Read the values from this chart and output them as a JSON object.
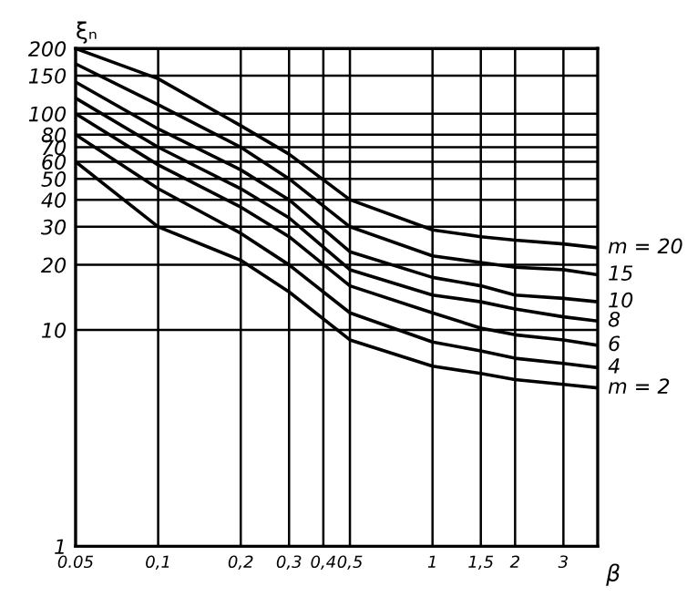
{
  "chart_data": {
    "type": "line",
    "xlabel": "β",
    "ylabel": "ξₙ",
    "log": "xy",
    "grid": true,
    "legend": false,
    "marker": "none",
    "line_style": "solid",
    "x": [
      0.05,
      0.1,
      0.2,
      0.3,
      0.5,
      1,
      1.5,
      2,
      3,
      4
    ],
    "xlim": [
      0.05,
      4
    ],
    "xticks": [
      0.05,
      {
        "value": 0.1,
        "label": "0,1"
      },
      {
        "value": 0.2,
        "label": "0,2"
      },
      {
        "value": 0.3,
        "label": "0,3"
      },
      {
        "value": 0.4,
        "label": "0,4"
      },
      {
        "value": 0.5,
        "label": "0,5"
      },
      1,
      {
        "value": 1.5,
        "label": "1,5"
      },
      2,
      3
    ],
    "ylim": [
      1,
      200
    ],
    "yticks": [
      1,
      10,
      20,
      30,
      40,
      50,
      60,
      70,
      80,
      100,
      150,
      200
    ],
    "series": [
      {
        "name": "m = 20",
        "color": "#000000",
        "values": [
          200,
          145,
          88,
          65,
          40,
          29,
          27,
          26,
          25,
          24
        ]
      },
      {
        "name": "15",
        "color": "#000000",
        "values": [
          170,
          110,
          70,
          50,
          30,
          22,
          20.5,
          19.5,
          19,
          18
        ]
      },
      {
        "name": "10",
        "color": "#000000",
        "values": [
          140,
          85,
          55,
          40,
          23,
          17.5,
          16,
          14.5,
          14,
          13.5
        ]
      },
      {
        "name": "8",
        "color": "#000000",
        "values": [
          118,
          70,
          45,
          33,
          19,
          14.5,
          13.5,
          12.5,
          11.5,
          11
        ]
      },
      {
        "name": "6",
        "color": "#000000",
        "values": [
          100,
          58,
          37,
          27,
          16,
          12,
          10.2,
          9.5,
          9,
          8.5
        ]
      },
      {
        "name": "4",
        "color": "#000000",
        "values": [
          80,
          45,
          28,
          20,
          12,
          8.8,
          8,
          7.4,
          7,
          6.7
        ]
      },
      {
        "name": "m = 2",
        "color": "#000000",
        "values": [
          60,
          30,
          21,
          15,
          9,
          6.8,
          6.3,
          5.9,
          5.6,
          5.4
        ]
      }
    ]
  }
}
